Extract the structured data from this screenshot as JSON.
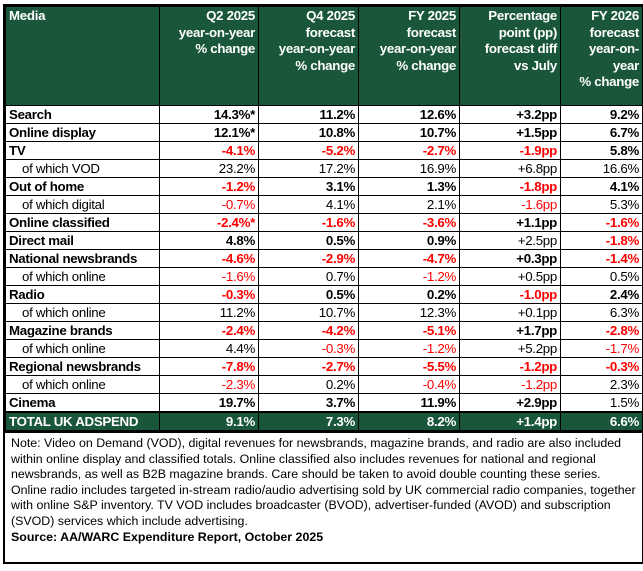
{
  "headers": [
    "Media",
    "Q2 2025 year-on-year % change",
    "Q4 2025 forecast year-on-year % change",
    "FY 2025 forecast year-on-year % change",
    "Percentage point (pp) forecast diff vs July",
    "FY 2026 forecast year-on-year % change"
  ],
  "header_lines": [
    [
      "Media"
    ],
    [
      "Q2 2025",
      "year-on-year",
      "% change"
    ],
    [
      "Q4 2025",
      "forecast",
      "year-on-year",
      "% change"
    ],
    [
      "FY 2025",
      "forecast",
      "year-on-year",
      "% change"
    ],
    [
      "Percentage",
      "point (pp)",
      "forecast diff",
      "vs July"
    ],
    [
      "FY 2026",
      "forecast",
      "year-on-year",
      "% change"
    ]
  ],
  "rows": [
    {
      "label": "Search",
      "type": "main",
      "values": [
        "14.3%*",
        "11.2%",
        "12.6%",
        "+3.2pp",
        "9.2%"
      ]
    },
    {
      "label": "Online display",
      "type": "main",
      "values": [
        "12.1%*",
        "10.8%",
        "10.7%",
        "+1.5pp",
        "6.7%"
      ]
    },
    {
      "label": "TV",
      "type": "main",
      "values": [
        "-4.1%",
        "-5.2%",
        "-2.7%",
        "-1.9pp",
        "5.8%"
      ]
    },
    {
      "label": "of which VOD",
      "type": "sub",
      "values": [
        "23.2%",
        "17.2%",
        "16.9%",
        "+6.8pp",
        "16.6%"
      ]
    },
    {
      "label": "Out of home",
      "type": "main",
      "values": [
        "-1.2%",
        "3.1%",
        "1.3%",
        "-1.8pp",
        "4.1%"
      ]
    },
    {
      "label": "of which digital",
      "type": "sub",
      "values": [
        "-0.7%",
        "4.1%",
        "2.1%",
        "-1.6pp",
        "5.3%"
      ]
    },
    {
      "label": "Online classified",
      "type": "main",
      "values": [
        "-2.4%*",
        "-1.6%",
        "-3.6%",
        "+1.1pp",
        "-1.6%"
      ]
    },
    {
      "label": "Direct mail",
      "type": "main",
      "values": [
        "4.8%",
        "0.5%",
        "0.9%",
        "+2.5pp",
        "-1.8%"
      ]
    },
    {
      "label": "National newsbrands",
      "type": "main",
      "values": [
        "-4.6%",
        "-2.9%",
        "-4.7%",
        "+0.3pp",
        "-1.4%"
      ]
    },
    {
      "label": "of which online",
      "type": "sub",
      "values": [
        "-1.6%",
        "0.7%",
        "-1.2%",
        "+0.5pp",
        "0.5%"
      ]
    },
    {
      "label": "Radio",
      "type": "main",
      "values": [
        "-0.3%",
        "0.5%",
        "0.2%",
        "-1.0pp",
        "2.4%"
      ]
    },
    {
      "label": "of which online",
      "type": "sub",
      "values": [
        "11.2%",
        "10.7%",
        "12.3%",
        "+0.1pp",
        "6.3%"
      ]
    },
    {
      "label": "Magazine brands",
      "type": "main",
      "values": [
        "-2.4%",
        "-4.2%",
        "-5.1%",
        "+1.7pp",
        "-2.8%"
      ]
    },
    {
      "label": "of which online",
      "type": "sub",
      "values": [
        "4.4%",
        "-0.3%",
        "-1.2%",
        "+5.2pp",
        "-1.7%"
      ]
    },
    {
      "label": "Regional newsbrands",
      "type": "main",
      "values": [
        "-7.8%",
        "-2.7%",
        "-5.5%",
        "-1.2pp",
        "-0.3%"
      ]
    },
    {
      "label": "of which online",
      "type": "sub",
      "values": [
        "-2.3%",
        "0.2%",
        "-0.4%",
        "-1.2pp",
        "2.3%"
      ]
    },
    {
      "label": "Cinema",
      "type": "main",
      "values": [
        "19.7%",
        "3.7%",
        "11.9%",
        "+2.9pp",
        "1.5%"
      ]
    },
    {
      "label": "TOTAL UK ADSPEND",
      "type": "total",
      "values": [
        "9.1%",
        "7.3%",
        "8.2%",
        "+1.4pp",
        "6.6%"
      ]
    }
  ],
  "note": "Note: Video on Demand (VOD), digital revenues for newsbrands, magazine brands, and radio are also included within online display and classified totals. Online classified also includes revenues for national and regional newsbrands, as well as B2B magazine brands. Care should be taken to avoid double counting these series. Online radio includes targeted in-stream radio/audio advertising sold by UK commercial radio companies, together with online S&P inventory. TV VOD includes broadcaster (BVOD), advertiser-funded (AVOD) and subscription (SVOD) services which include advertising.",
  "source": "Source: AA/WARC Expenditure Report, October 2025",
  "colors": {
    "header_bg": "#1a563a",
    "negative": "#ff0000"
  }
}
